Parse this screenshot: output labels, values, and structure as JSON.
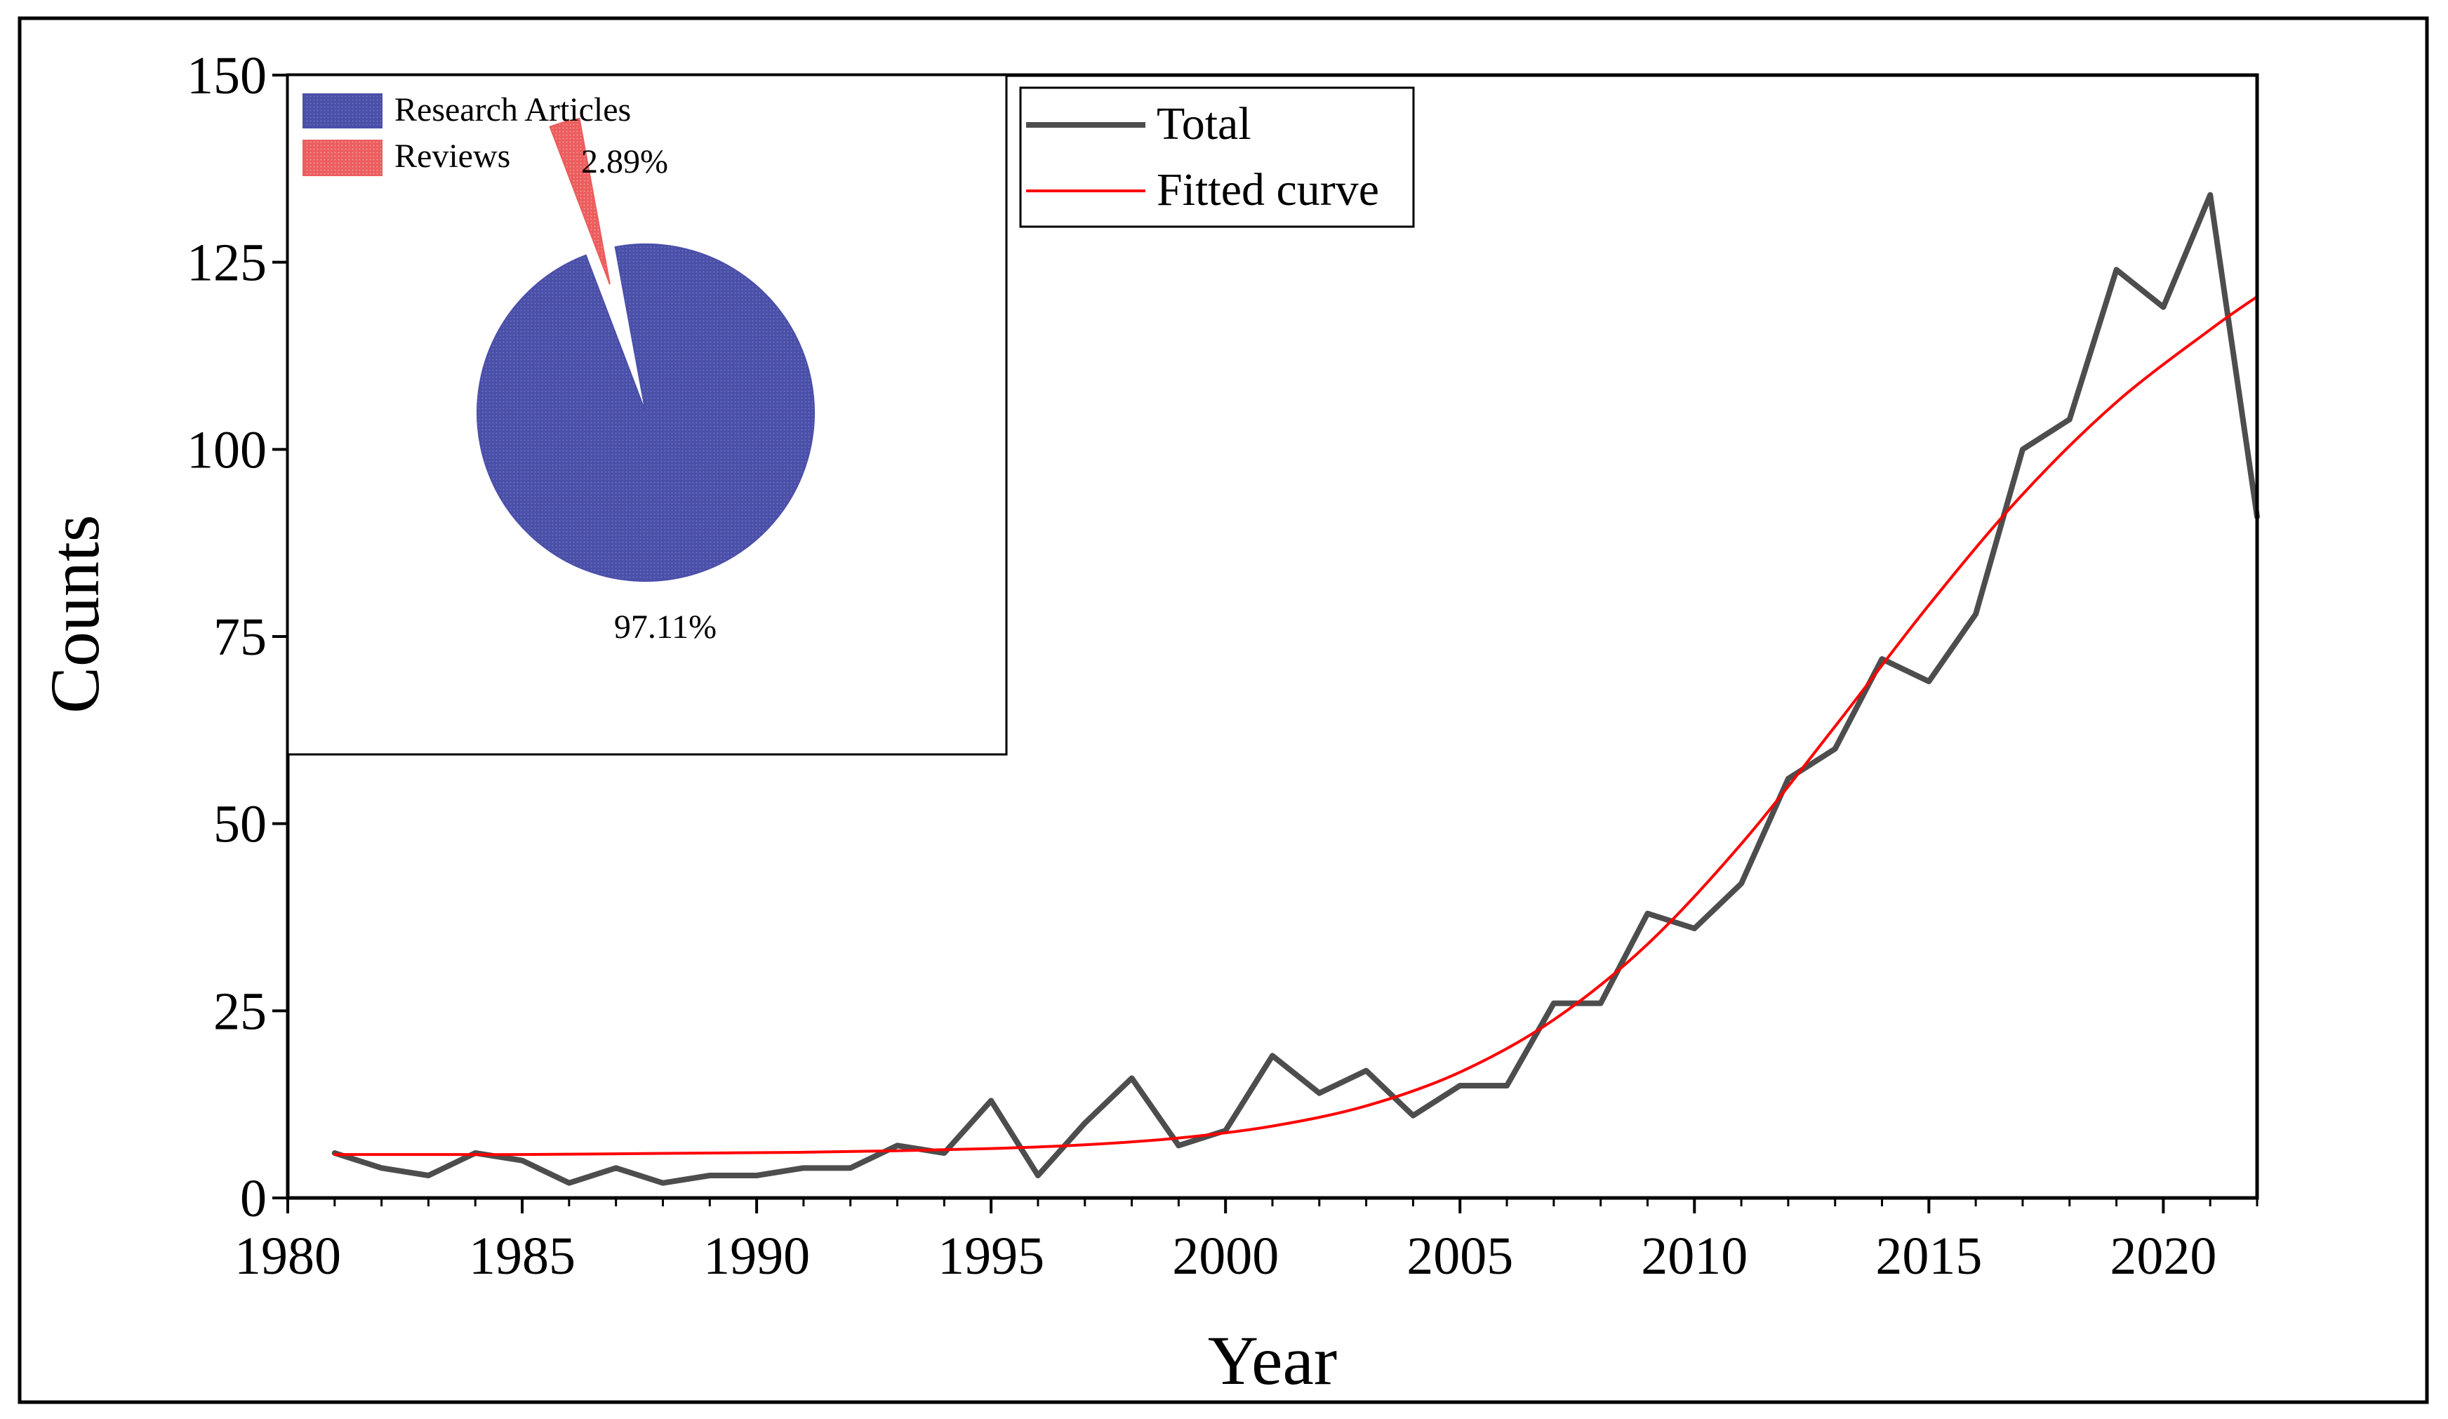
{
  "chart_data": [
    {
      "type": "line",
      "xlabel": "Year",
      "ylabel": "Counts",
      "xlim": [
        1980,
        2022
      ],
      "ylim": [
        0,
        150
      ],
      "x_ticks": [
        1980,
        1985,
        1990,
        1995,
        2000,
        2005,
        2010,
        2015,
        2020
      ],
      "y_ticks": [
        0,
        25,
        50,
        75,
        100,
        125,
        150
      ],
      "x_tick_labels": [
        "1980",
        "1985",
        "1990",
        "1995",
        "2000",
        "2005",
        "2010",
        "2015",
        "2020"
      ],
      "y_tick_labels": [
        "0",
        "25",
        "50",
        "75",
        "100",
        "125",
        "150"
      ],
      "legend": {
        "placement": "top-right"
      },
      "series": [
        {
          "name": "Total",
          "color": "#4d4d4d",
          "x": [
            1981,
            1982,
            1983,
            1984,
            1985,
            1986,
            1987,
            1988,
            1989,
            1990,
            1991,
            1992,
            1993,
            1994,
            1995,
            1996,
            1997,
            1998,
            1999,
            2000,
            2001,
            2002,
            2003,
            2004,
            2005,
            2006,
            2007,
            2008,
            2009,
            2010,
            2011,
            2012,
            2013,
            2014,
            2015,
            2016,
            2017,
            2018,
            2019,
            2020,
            2021,
            2022
          ],
          "values": [
            6,
            4,
            3,
            6,
            5,
            2,
            4,
            2,
            3,
            3,
            4,
            4,
            7,
            6,
            13,
            3,
            10,
            16,
            7,
            9,
            19,
            14,
            17,
            11,
            15,
            15,
            26,
            26,
            38,
            36,
            42,
            56,
            60,
            72,
            69,
            78,
            100,
            104,
            124,
            119,
            134,
            91
          ]
        },
        {
          "name": "Fitted curve",
          "color": "#ff0000",
          "x": [
            1981,
            1983,
            1985,
            1987,
            1989,
            1991,
            1993,
            1995,
            1997,
            1999,
            2001,
            2003,
            2005,
            2007,
            2009,
            2011,
            2013,
            2015,
            2017,
            2019,
            2021,
            2022
          ],
          "values": [
            5.8,
            5.8,
            5.8,
            5.9,
            6.0,
            6.1,
            6.3,
            6.6,
            7.1,
            8.0,
            9.6,
            12.3,
            16.8,
            23.8,
            33.9,
            47.3,
            63.0,
            79.2,
            94.0,
            106.3,
            116.0,
            120.4
          ]
        }
      ]
    },
    {
      "type": "pie",
      "legend": {
        "placement": "top-left"
      },
      "slices": [
        {
          "label": "Research Articles",
          "value": 97.11,
          "value_label": "97.11%",
          "color": "#4a4fa8"
        },
        {
          "label": "Reviews",
          "value": 2.89,
          "value_label": "2.89%",
          "color": "#ec5d5d"
        }
      ]
    }
  ]
}
